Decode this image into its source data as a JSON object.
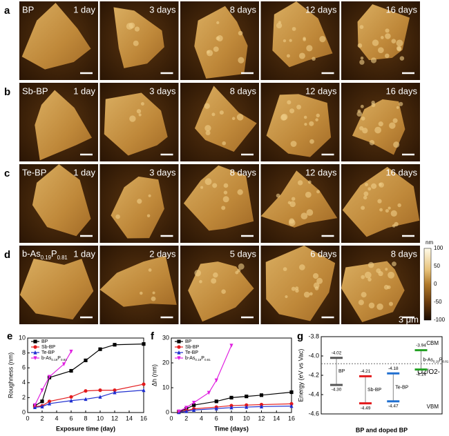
{
  "panels": {
    "rows": [
      {
        "label": "a",
        "sample": "BP",
        "days": [
          "1 day",
          "3 days",
          "8 days",
          "12 days",
          "16 days"
        ]
      },
      {
        "label": "b",
        "sample": "Sb-BP",
        "days": [
          "1 day",
          "3 days",
          "8 days",
          "12 days",
          "16 days"
        ]
      },
      {
        "label": "c",
        "sample": "Te-BP",
        "days": [
          "1 day",
          "3 days",
          "8 days",
          "12 days",
          "16 days"
        ]
      },
      {
        "label": "d",
        "sample": "b-As0.19P0.81",
        "days": [
          "1 day",
          "2 days",
          "5 days",
          "6 days",
          "8 days"
        ]
      }
    ],
    "colorbar": {
      "unit": "nm",
      "lim": [
        -100,
        100
      ],
      "ticks": [
        100,
        50,
        0,
        -50,
        -100
      ],
      "scale": "3 μm"
    }
  },
  "chart_data": [
    {
      "type": "line",
      "label": "e",
      "xlabel": "Exposure time (day)",
      "ylabel": "Roughness (nm)",
      "xlim": [
        0,
        16
      ],
      "xticks": [
        0,
        2,
        4,
        6,
        8,
        10,
        12,
        14,
        16
      ],
      "ylim": [
        0,
        10
      ],
      "yticks": [
        0,
        2,
        4,
        6,
        8,
        10
      ],
      "series": [
        {
          "name": "BP",
          "color": "#000000",
          "marker": "square",
          "x": [
            1,
            2,
            3,
            6,
            8,
            10,
            12,
            16
          ],
          "values": [
            0.9,
            1.5,
            4.7,
            5.6,
            7.0,
            8.5,
            9.1,
            9.2
          ]
        },
        {
          "name": "Sb-BP",
          "color": "#e31a1c",
          "marker": "circle",
          "x": [
            1,
            2,
            3,
            6,
            8,
            10,
            12,
            16
          ],
          "values": [
            0.8,
            0.9,
            1.5,
            2.1,
            2.9,
            3.0,
            3.0,
            3.8
          ]
        },
        {
          "name": "Te-BP",
          "color": "#1f2fd0",
          "marker": "triangle",
          "x": [
            1,
            2,
            3,
            6,
            8,
            10,
            12,
            16
          ],
          "values": [
            0.7,
            0.8,
            1.2,
            1.6,
            1.8,
            2.1,
            2.7,
            3.0
          ]
        },
        {
          "name": "b-As0.19P0.81",
          "color": "#e020e0",
          "marker": "triangle-down",
          "x": [
            1,
            2,
            3,
            5,
            6
          ],
          "values": [
            1.0,
            3.0,
            4.8,
            6.5,
            8.2
          ]
        }
      ]
    },
    {
      "type": "line",
      "label": "f",
      "xlabel": "Time (days)",
      "ylabel": "Δh (nm)",
      "xlim": [
        0,
        16
      ],
      "xticks": [
        0,
        2,
        4,
        6,
        8,
        10,
        12,
        14,
        16
      ],
      "ylim": [
        0,
        30
      ],
      "yticks": [
        0,
        10,
        20,
        30
      ],
      "series": [
        {
          "name": "BP",
          "color": "#000000",
          "marker": "square",
          "x": [
            1,
            2,
            3,
            6,
            8,
            10,
            12,
            16
          ],
          "values": [
            0.3,
            1.5,
            3.0,
            4.5,
            6.0,
            6.5,
            7.0,
            8.2
          ]
        },
        {
          "name": "Sb-BP",
          "color": "#e31a1c",
          "marker": "circle",
          "x": [
            1,
            2,
            3,
            6,
            8,
            10,
            12,
            16
          ],
          "values": [
            0.2,
            0.8,
            1.5,
            2.2,
            2.8,
            3.0,
            3.2,
            3.5
          ]
        },
        {
          "name": "Te-BP",
          "color": "#1f2fd0",
          "marker": "triangle",
          "x": [
            1,
            2,
            3,
            6,
            8,
            10,
            12,
            16
          ],
          "values": [
            0.1,
            0.5,
            1.0,
            1.6,
            2.0,
            2.2,
            2.4,
            2.6
          ]
        },
        {
          "name": "b-As0.19P0.81",
          "color": "#e020e0",
          "marker": "triangle-down",
          "x": [
            1,
            2,
            3,
            5,
            6,
            8
          ],
          "values": [
            0.5,
            2.0,
            4.0,
            8.0,
            13.0,
            27.0
          ]
        }
      ]
    },
    {
      "type": "band",
      "label": "g",
      "xlabel": "BP and doped BP",
      "ylabel": "Energy (eV vs Vac)",
      "ylim": [
        -4.6,
        -3.8
      ],
      "yticks": [
        -4.6,
        -4.4,
        -4.2,
        {
          "value": -4.0,
          "label": "-4.0"
        },
        -3.8
      ],
      "categories": [
        "BP",
        "Sb-BP",
        "Te-BP",
        "b-As0.19P0.81"
      ],
      "colors": [
        "#555555",
        "#e31a1c",
        "#1f6fd0",
        "#22a022"
      ],
      "cbm": [
        -4.02,
        -4.21,
        -4.18,
        -3.94
      ],
      "vbm": [
        -4.3,
        -4.49,
        -4.47,
        -4.14
      ],
      "cbm_labels": [
        "-4.02",
        "-4.21",
        "-4.18",
        "-3.94"
      ],
      "vbm_labels": [
        "-4.30",
        "-4.49",
        "-4.47",
        "-4.14"
      ],
      "cbm_text": "CBM",
      "vbm_text": "VBM",
      "redox_label": "O2/O2-",
      "redox_level": -4.08
    }
  ]
}
